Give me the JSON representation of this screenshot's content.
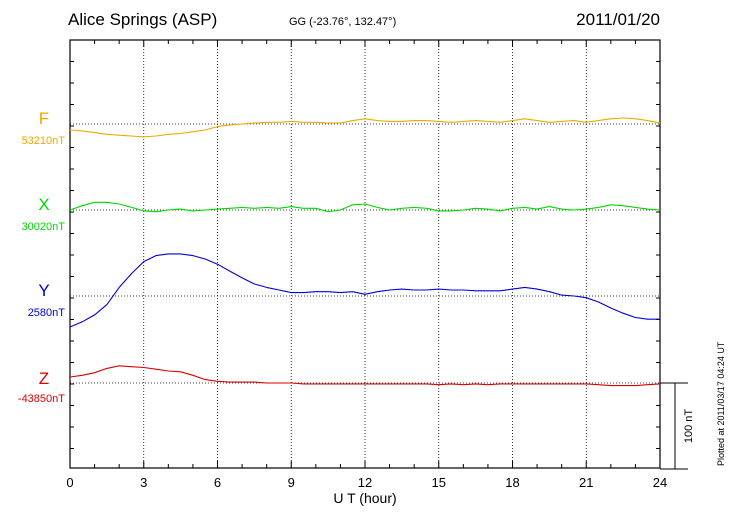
{
  "header": {
    "station": "Alice Springs (ASP)",
    "coordinates": "GG (-23.76°, 132.47°)",
    "date": "2011/01/20"
  },
  "footer": {
    "plotted": "Plotted at 2011/03/17 04:24 UT",
    "scale_label": "100 nT"
  },
  "chart_data": {
    "type": "line",
    "xlabel": "U T (hour)",
    "xlim": [
      0,
      24
    ],
    "xticks": [
      "0",
      "3",
      "6",
      "9",
      "12",
      "15",
      "18",
      "21",
      "24"
    ],
    "grid": true,
    "scale_bar_nT": 100,
    "series": [
      {
        "name": "F",
        "baseline_label": "53210nT",
        "baseline": 53210,
        "color": "#f0a800",
        "x": [
          0,
          0.5,
          1,
          1.5,
          2,
          2.5,
          3,
          3.5,
          4,
          4.5,
          5,
          5.5,
          6,
          6.5,
          7,
          7.5,
          8,
          8.5,
          9,
          9.5,
          10,
          10.5,
          11,
          11.5,
          12,
          12.5,
          13,
          13.5,
          14,
          14.5,
          15,
          15.5,
          16,
          16.5,
          17,
          17.5,
          18,
          18.5,
          19,
          19.5,
          20,
          20.5,
          21,
          21.5,
          22,
          22.5,
          23,
          23.5,
          24
        ],
        "y": [
          53203,
          53202,
          53200,
          53198,
          53197,
          53196,
          53195,
          53196,
          53198,
          53199,
          53201,
          53203,
          53207,
          53209,
          53210,
          53211,
          53212,
          53212,
          53213,
          53212,
          53212,
          53211,
          53211,
          53214,
          53216,
          53214,
          53213,
          53213,
          53214,
          53214,
          53213,
          53212,
          53213,
          53214,
          53213,
          53212,
          53214,
          53216,
          53214,
          53212,
          53213,
          53214,
          53212,
          53214,
          53216,
          53217,
          53216,
          53214,
          53211
        ]
      },
      {
        "name": "X",
        "baseline_label": "30020nT",
        "baseline": 30020,
        "color": "#00d800",
        "x": [
          0,
          0.5,
          1,
          1.5,
          2,
          2.5,
          3,
          3.5,
          4,
          4.5,
          5,
          5.5,
          6,
          6.5,
          7,
          7.5,
          8,
          8.5,
          9,
          9.5,
          10,
          10.5,
          11,
          11.5,
          12,
          12.5,
          13,
          13.5,
          14,
          14.5,
          15,
          15.5,
          16,
          16.5,
          17,
          17.5,
          18,
          18.5,
          19,
          19.5,
          20,
          20.5,
          21,
          21.5,
          22,
          22.5,
          23,
          23.5,
          24
        ],
        "y": [
          30020,
          30025,
          30029,
          30029,
          30027,
          30023,
          30019,
          30018,
          30020,
          30021,
          30019,
          30020,
          30021,
          30022,
          30023,
          30022,
          30023,
          30022,
          30024,
          30022,
          30022,
          30018,
          30020,
          30026,
          30027,
          30023,
          30020,
          30022,
          30023,
          30022,
          30019,
          30019,
          30020,
          30022,
          30021,
          30019,
          30022,
          30023,
          30021,
          30024,
          30021,
          30020,
          30021,
          30023,
          30026,
          30025,
          30023,
          30021,
          30020
        ]
      },
      {
        "name": "Y",
        "baseline_label": "2580nT",
        "baseline": 2580,
        "color": "#0000d8",
        "x": [
          0,
          0.5,
          1,
          1.5,
          2,
          2.5,
          3,
          3.5,
          4,
          4.5,
          5,
          5.5,
          6,
          6.5,
          7,
          7.5,
          8,
          8.5,
          9,
          9.5,
          10,
          10.5,
          11,
          11.5,
          12,
          12.5,
          13,
          13.5,
          14,
          14.5,
          15,
          15.5,
          16,
          16.5,
          17,
          17.5,
          18,
          18.5,
          19,
          19.5,
          20,
          20.5,
          21,
          21.5,
          22,
          22.5,
          23,
          23.5,
          24
        ],
        "y": [
          2544,
          2550,
          2558,
          2570,
          2590,
          2606,
          2620,
          2627,
          2629,
          2629,
          2627,
          2623,
          2617,
          2609,
          2601,
          2594,
          2590,
          2587,
          2584,
          2584,
          2585,
          2585,
          2584,
          2585,
          2582,
          2585,
          2587,
          2588,
          2587,
          2587,
          2588,
          2587,
          2587,
          2586,
          2586,
          2586,
          2588,
          2590,
          2588,
          2585,
          2581,
          2580,
          2578,
          2573,
          2566,
          2560,
          2555,
          2553,
          2553
        ]
      },
      {
        "name": "Z",
        "baseline_label": "-43850nT",
        "baseline": -43850,
        "color": "#d80000",
        "x": [
          0,
          0.5,
          1,
          1.5,
          2,
          2.5,
          3,
          3.5,
          4,
          4.5,
          5,
          5.5,
          6,
          6.5,
          7,
          7.5,
          8,
          8.5,
          9,
          9.5,
          10,
          10.5,
          11,
          11.5,
          12,
          12.5,
          13,
          13.5,
          14,
          14.5,
          15,
          15.5,
          16,
          16.5,
          17,
          17.5,
          18,
          18.5,
          19,
          19.5,
          20,
          20.5,
          21,
          21.5,
          22,
          22.5,
          23,
          23.5,
          24
        ],
        "y": [
          -43843,
          -43841,
          -43838,
          -43833,
          -43830,
          -43831,
          -43832,
          -43834,
          -43836,
          -43837,
          -43841,
          -43846,
          -43848,
          -43849,
          -43849,
          -43849,
          -43850,
          -43850,
          -43850,
          -43851,
          -43851,
          -43851,
          -43851,
          -43851,
          -43851,
          -43851,
          -43851,
          -43851,
          -43851,
          -43851,
          -43852,
          -43851,
          -43852,
          -43851,
          -43852,
          -43851,
          -43851,
          -43851,
          -43851,
          -43851,
          -43851,
          -43851,
          -43851,
          -43852,
          -43853,
          -43853,
          -43853,
          -43852,
          -43851
        ]
      }
    ]
  }
}
